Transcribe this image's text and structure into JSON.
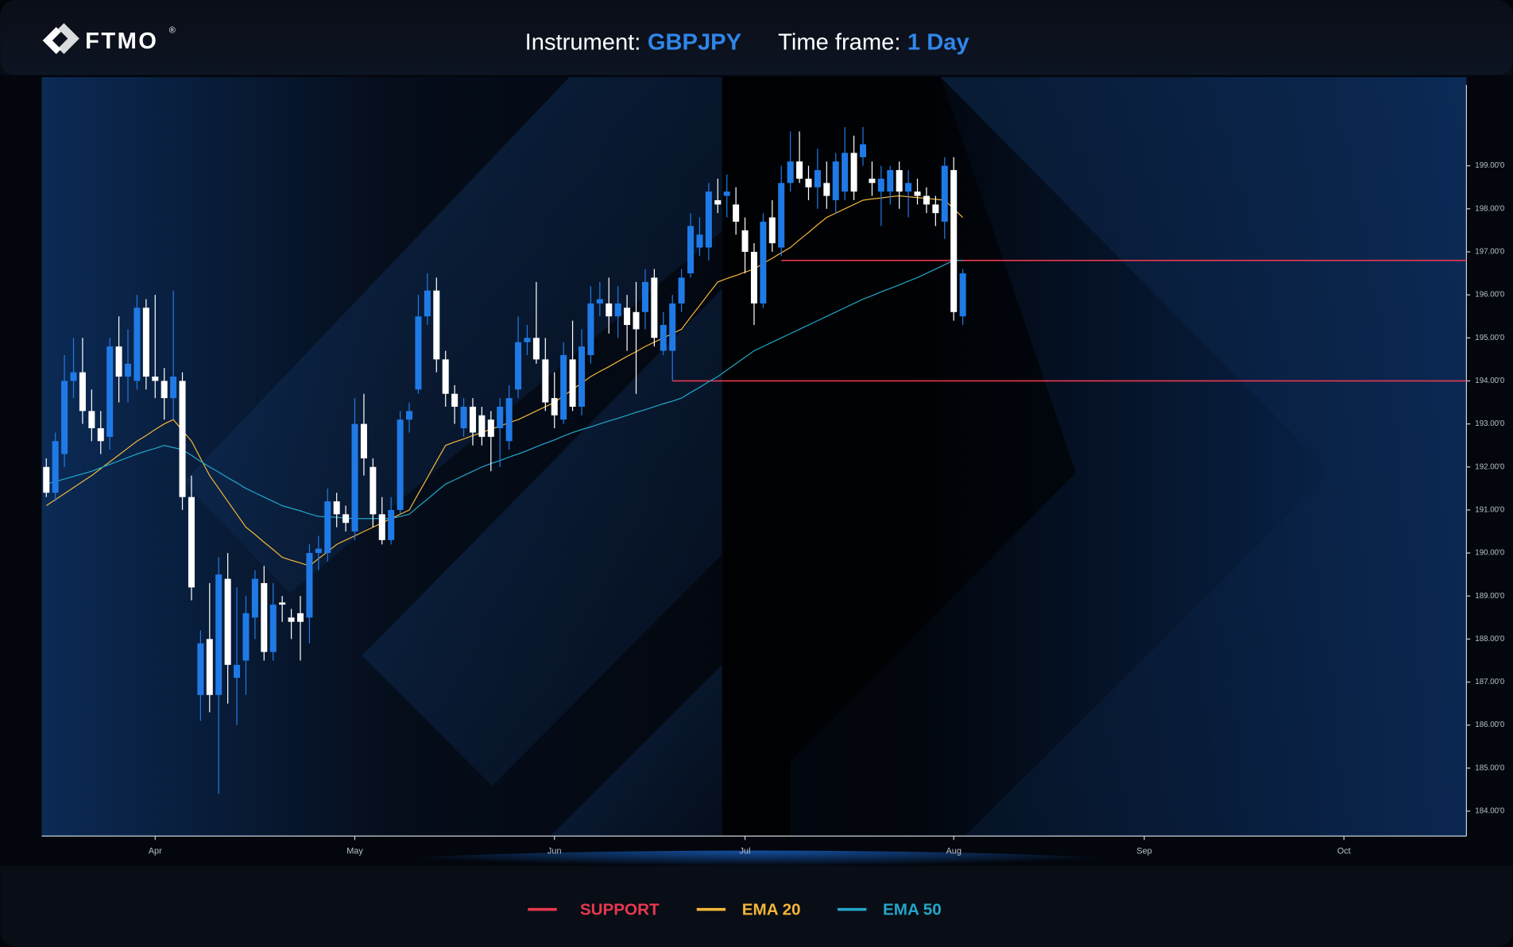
{
  "header": {
    "logo": "FTMO",
    "logo_mark": "®",
    "instrument_label": "Instrument:",
    "instrument": "GBPJPY",
    "timeframe_label": "Time frame:",
    "timeframe": "1 Day"
  },
  "chart_data": {
    "type": "candlestick",
    "categories": [
      null,
      null,
      null,
      null,
      null,
      null,
      null,
      null,
      null,
      null,
      null,
      null,
      "Apr",
      null,
      null,
      null,
      null,
      null,
      null,
      null,
      null,
      null,
      null,
      null,
      null,
      null,
      null,
      null,
      null,
      null,
      null,
      null,
      null,
      null,
      "May",
      null,
      null,
      null,
      null,
      null,
      null,
      null,
      null,
      null,
      null,
      null,
      null,
      null,
      null,
      null,
      null,
      null,
      null,
      null,
      null,
      null,
      "Jun",
      null,
      null,
      null,
      null,
      null,
      null,
      null,
      null,
      null,
      null,
      null,
      null,
      null,
      null,
      null,
      null,
      null,
      null,
      null,
      null,
      "Jul",
      null,
      null,
      null,
      null,
      null,
      null,
      null,
      null,
      null,
      null,
      null,
      null,
      null,
      null,
      null,
      null,
      null,
      null,
      null,
      null,
      null,
      null,
      "Aug",
      null,
      null,
      null,
      null,
      null,
      null,
      null,
      null,
      null,
      null,
      null,
      null,
      null,
      null,
      null,
      null,
      null,
      null,
      null,
      null,
      "Sep",
      null,
      null,
      null,
      null,
      null,
      null,
      null,
      null,
      null,
      null,
      null,
      null,
      null,
      null,
      null,
      null,
      null,
      null,
      null,
      null,
      null,
      "Oct",
      null,
      null,
      null,
      null,
      null,
      null,
      null,
      null,
      null,
      null,
      null,
      null,
      null
    ],
    "open": [
      192.0,
      191.4,
      192.3,
      194.0,
      194.2,
      193.3,
      192.9,
      192.7,
      194.8,
      194.1,
      194.0,
      195.7,
      194.1,
      194.0,
      193.6,
      194.0,
      191.3,
      186.7,
      188.0,
      186.7,
      189.4,
      187.1,
      187.5,
      188.5,
      189.3,
      187.7,
      188.85,
      188.5,
      188.6,
      188.5,
      190.0,
      190.0,
      191.2,
      190.9,
      190.5,
      193.0,
      192.0,
      190.9,
      190.3,
      191.0,
      193.1,
      193.8,
      195.5,
      196.1,
      194.5,
      193.7,
      192.9,
      193.4,
      193.2,
      193.1,
      192.9,
      192.6,
      193.8,
      194.9,
      195.0,
      194.5,
      193.6,
      193.1,
      194.5,
      193.4,
      194.6,
      195.8,
      195.8,
      195.5,
      195.7,
      195.6,
      195.6,
      196.4,
      194.7,
      194.7,
      195.8,
      196.5,
      197.1,
      197.1,
      198.2,
      198.3,
      198.1,
      197.5,
      197.0,
      195.8,
      197.8,
      197.1,
      198.6,
      199.1,
      198.7,
      198.5,
      198.6,
      198.2,
      198.4,
      199.3,
      199.2,
      198.7,
      198.4,
      198.4,
      198.9,
      198.4,
      198.4,
      198.3,
      198.1,
      197.7,
      198.9,
      195.5,
      null,
      null,
      null,
      null,
      null,
      null,
      null,
      null,
      null,
      null,
      null,
      null,
      null,
      null,
      null,
      null,
      null,
      null,
      null,
      null,
      null,
      null,
      null,
      null,
      null,
      null,
      null,
      null,
      null,
      null,
      null,
      null,
      null,
      null,
      null,
      null,
      null,
      null,
      null,
      null,
      null,
      null,
      null,
      null,
      null,
      null,
      null,
      null,
      null,
      null,
      null,
      null,
      null,
      null,
      null
    ],
    "high": [
      192.2,
      192.8,
      194.6,
      195.0,
      195.0,
      193.8,
      193.3,
      195.0,
      195.5,
      195.2,
      196.0,
      195.9,
      196.0,
      194.3,
      196.1,
      194.2,
      191.8,
      188.2,
      189.3,
      189.9,
      190.0,
      189.2,
      189.0,
      189.6,
      189.7,
      189.3,
      189.0,
      188.7,
      189.0,
      190.2,
      190.4,
      191.5,
      191.4,
      191.1,
      193.6,
      193.7,
      192.2,
      191.3,
      191.3,
      193.3,
      193.5,
      196.0,
      196.5,
      196.4,
      194.7,
      193.9,
      193.6,
      193.6,
      193.4,
      193.3,
      193.6,
      193.9,
      195.5,
      195.3,
      196.3,
      195.0,
      194.2,
      194.9,
      195.4,
      195.2,
      196.2,
      196.3,
      196.4,
      196.2,
      196.0,
      196.3,
      196.6,
      196.6,
      195.6,
      196.0,
      196.6,
      197.9,
      197.8,
      198.6,
      198.7,
      198.8,
      198.5,
      197.8,
      197.2,
      197.9,
      198.2,
      199.0,
      199.8,
      199.8,
      199.0,
      199.4,
      199.1,
      199.3,
      199.9,
      199.7,
      199.9,
      199.1,
      199.0,
      199.0,
      199.1,
      198.9,
      198.7,
      198.5,
      198.3,
      199.2,
      199.2,
      196.6,
      null,
      null,
      null,
      null,
      null,
      null,
      null,
      null,
      null,
      null,
      null,
      null,
      null,
      null,
      null,
      null,
      null,
      null,
      null,
      null,
      null,
      null,
      null,
      null,
      null,
      null,
      null,
      null,
      null,
      null,
      null,
      null,
      null,
      null,
      null,
      null,
      null,
      null,
      null,
      null,
      null,
      null,
      null,
      null,
      null,
      null,
      null,
      null,
      null,
      null,
      null,
      null,
      null,
      null,
      null
    ],
    "low": [
      191.3,
      191.2,
      192.0,
      193.6,
      193.0,
      192.6,
      192.3,
      192.4,
      193.5,
      193.5,
      193.8,
      193.8,
      193.6,
      193.1,
      193.1,
      191.0,
      188.9,
      186.1,
      186.3,
      184.4,
      186.5,
      186.0,
      186.7,
      188.0,
      187.5,
      187.5,
      188.4,
      188.0,
      187.5,
      187.9,
      189.6,
      189.8,
      190.6,
      190.5,
      190.3,
      191.8,
      190.6,
      190.2,
      190.2,
      190.9,
      192.8,
      193.7,
      195.3,
      194.2,
      193.4,
      193.0,
      192.7,
      192.5,
      192.5,
      191.9,
      192.0,
      192.4,
      193.6,
      194.6,
      194.4,
      193.3,
      192.9,
      193.0,
      193.3,
      193.2,
      194.4,
      195.5,
      195.1,
      195.0,
      194.7,
      193.7,
      195.2,
      194.8,
      194.6,
      194.0,
      195.6,
      196.4,
      196.9,
      196.8,
      197.9,
      197.8,
      197.4,
      196.5,
      195.3,
      195.7,
      197.0,
      196.9,
      198.4,
      198.6,
      198.2,
      198.0,
      198.0,
      197.9,
      198.2,
      198.2,
      199.0,
      198.3,
      197.6,
      198.1,
      198.0,
      197.8,
      198.1,
      197.9,
      197.6,
      197.3,
      195.4,
      195.3,
      null,
      null,
      null,
      null,
      null,
      null,
      null,
      null,
      null,
      null,
      null,
      null,
      null,
      null,
      null,
      null,
      null,
      null,
      null,
      null,
      null,
      null,
      null,
      null,
      null,
      null,
      null,
      null,
      null,
      null,
      null,
      null,
      null,
      null,
      null,
      null,
      null,
      null,
      null,
      null,
      null,
      null,
      null,
      null,
      null,
      null,
      null,
      null,
      null,
      null,
      null,
      null,
      null,
      null,
      null
    ],
    "close": [
      191.4,
      192.6,
      194.0,
      194.2,
      193.3,
      192.9,
      192.6,
      194.8,
      194.1,
      194.4,
      195.7,
      194.1,
      194.0,
      193.6,
      194.1,
      191.3,
      189.2,
      187.9,
      186.7,
      189.5,
      187.4,
      187.4,
      188.6,
      189.4,
      187.7,
      188.8,
      188.8,
      188.4,
      188.4,
      190.0,
      190.1,
      191.2,
      190.9,
      190.7,
      193.0,
      192.2,
      190.9,
      190.3,
      191.0,
      193.1,
      193.3,
      195.5,
      196.1,
      194.5,
      193.7,
      193.4,
      193.4,
      192.8,
      192.7,
      192.7,
      193.4,
      193.6,
      194.9,
      195.0,
      194.5,
      193.5,
      193.2,
      194.6,
      193.4,
      194.8,
      195.8,
      195.9,
      195.5,
      195.8,
      195.3,
      195.2,
      196.3,
      195.0,
      195.3,
      195.8,
      196.4,
      197.6,
      197.4,
      198.4,
      198.1,
      198.4,
      197.7,
      197.0,
      195.8,
      197.7,
      197.2,
      198.6,
      199.1,
      198.7,
      198.5,
      198.9,
      198.3,
      199.1,
      199.3,
      198.4,
      199.5,
      198.6,
      198.7,
      198.9,
      198.4,
      198.6,
      198.3,
      198.1,
      197.9,
      199.0,
      195.6,
      196.5,
      null,
      null,
      null,
      null,
      null,
      null,
      null,
      null,
      null,
      null,
      null,
      null,
      null,
      null,
      null,
      null,
      null,
      null,
      null,
      null,
      null,
      null,
      null,
      null,
      null,
      null,
      null,
      null,
      null,
      null,
      null,
      null,
      null,
      null,
      null,
      null,
      null,
      null,
      null,
      null,
      null,
      null,
      null,
      null,
      null,
      null,
      null,
      null,
      null,
      null,
      null,
      null,
      null,
      null,
      null
    ],
    "up_color": "#1f7ae6",
    "down_color": "#ffffff",
    "ylim": [
      183.42,
      201.06
    ],
    "yticks": [
      {
        "value": 184,
        "label": "184.00'0"
      },
      {
        "value": 185,
        "label": "185.00'0"
      },
      {
        "value": 186,
        "label": "186.00'0"
      },
      {
        "value": 187,
        "label": "187.00'0"
      },
      {
        "value": 188,
        "label": "188.00'0"
      },
      {
        "value": 189,
        "label": "189.00'0"
      },
      {
        "value": 190,
        "label": "190.00'0"
      },
      {
        "value": 191,
        "label": "191.00'0"
      },
      {
        "value": 192,
        "label": "192.00'0"
      },
      {
        "value": 193,
        "label": "193.00'0"
      },
      {
        "value": 194,
        "label": "194.00'0"
      },
      {
        "value": 195,
        "label": "195.00'0"
      },
      {
        "value": 196,
        "label": "196.00'0"
      },
      {
        "value": 197,
        "label": "197.00'0"
      },
      {
        "value": 198,
        "label": "198.00'0"
      },
      {
        "value": 199,
        "label": "199.00'0"
      }
    ],
    "support": {
      "name": "SUPPORT",
      "color": "#e8384f",
      "levels": [
        {
          "value": 196.8,
          "start": 81
        },
        {
          "value": 194.0,
          "start": 69
        }
      ]
    },
    "series": [
      {
        "name": "EMA 20",
        "color": "#f2b53a",
        "values": [
          191.1,
          191.24,
          191.38,
          191.52,
          191.66,
          191.8,
          191.96,
          192.12,
          192.28,
          192.44,
          192.6,
          192.73,
          192.87,
          193.0,
          193.1,
          192.85,
          192.6,
          192.2,
          191.8,
          191.5,
          191.2,
          190.9,
          190.6,
          190.43,
          190.25,
          190.08,
          189.9,
          189.83,
          189.77,
          189.7,
          189.87,
          190.03,
          190.2,
          190.3,
          190.4,
          190.5,
          190.6,
          190.7,
          190.8,
          190.9,
          191.0,
          191.38,
          191.75,
          192.13,
          192.5,
          192.58,
          192.65,
          192.73,
          192.8,
          192.88,
          192.95,
          193.03,
          193.1,
          193.2,
          193.3,
          193.4,
          193.5,
          193.65,
          193.8,
          193.95,
          194.1,
          194.22,
          194.33,
          194.45,
          194.57,
          194.68,
          194.8,
          194.9,
          195.0,
          195.1,
          195.2,
          195.48,
          195.75,
          196.03,
          196.3,
          196.38,
          196.45,
          196.53,
          196.6,
          196.73,
          196.85,
          196.98,
          197.1,
          197.28,
          197.45,
          197.63,
          197.8,
          197.9,
          198.0,
          198.1,
          198.2,
          198.23,
          198.25,
          198.28,
          198.3,
          198.28,
          198.26,
          198.24,
          198.22,
          198.2,
          198.0,
          197.8,
          null,
          null,
          null,
          null,
          null,
          null,
          null,
          null,
          null,
          null,
          null,
          null,
          null,
          null,
          null,
          null,
          null,
          null,
          null,
          null,
          null,
          null,
          null,
          null,
          null,
          null,
          null,
          null,
          null,
          null,
          null,
          null,
          null,
          null,
          null,
          null,
          null,
          null,
          null,
          null,
          null,
          null,
          null,
          null,
          null,
          null,
          null,
          null,
          null,
          null,
          null,
          null,
          null,
          null,
          null
        ]
      },
      {
        "name": "EMA 50",
        "color": "#22a6c9",
        "values": [
          191.6,
          191.66,
          191.72,
          191.78,
          191.84,
          191.9,
          191.98,
          192.06,
          192.14,
          192.22,
          192.3,
          192.37,
          192.43,
          192.5,
          192.45,
          192.4,
          192.27,
          192.13,
          192.0,
          191.88,
          191.75,
          191.63,
          191.5,
          191.4,
          191.3,
          191.2,
          191.1,
          191.04,
          190.98,
          190.91,
          190.85,
          190.84,
          190.83,
          190.81,
          190.8,
          190.8,
          190.8,
          190.8,
          190.8,
          190.85,
          190.9,
          191.08,
          191.25,
          191.43,
          191.6,
          191.7,
          191.8,
          191.9,
          192.0,
          192.08,
          192.15,
          192.23,
          192.3,
          192.38,
          192.47,
          192.55,
          192.63,
          192.72,
          192.8,
          192.87,
          192.93,
          193.0,
          193.07,
          193.13,
          193.2,
          193.27,
          193.33,
          193.4,
          193.47,
          193.53,
          193.6,
          193.73,
          193.85,
          193.98,
          194.1,
          194.25,
          194.4,
          194.55,
          194.7,
          194.8,
          194.9,
          195.0,
          195.1,
          195.2,
          195.3,
          195.4,
          195.5,
          195.6,
          195.7,
          195.8,
          195.9,
          195.98,
          196.07,
          196.15,
          196.23,
          196.32,
          196.4,
          196.5,
          196.6,
          196.7,
          196.8,
          196.8,
          null,
          null,
          null,
          null,
          null,
          null,
          null,
          null,
          null,
          null,
          null,
          null,
          null,
          null,
          null,
          null,
          null,
          null,
          null,
          null,
          null,
          null,
          null,
          null,
          null,
          null,
          null,
          null,
          null,
          null,
          null,
          null,
          null,
          null,
          null,
          null,
          null,
          null,
          null,
          null,
          null,
          null,
          null,
          null,
          null,
          null,
          null,
          null,
          null,
          null,
          null,
          null,
          null,
          null,
          null
        ]
      }
    ]
  }
}
